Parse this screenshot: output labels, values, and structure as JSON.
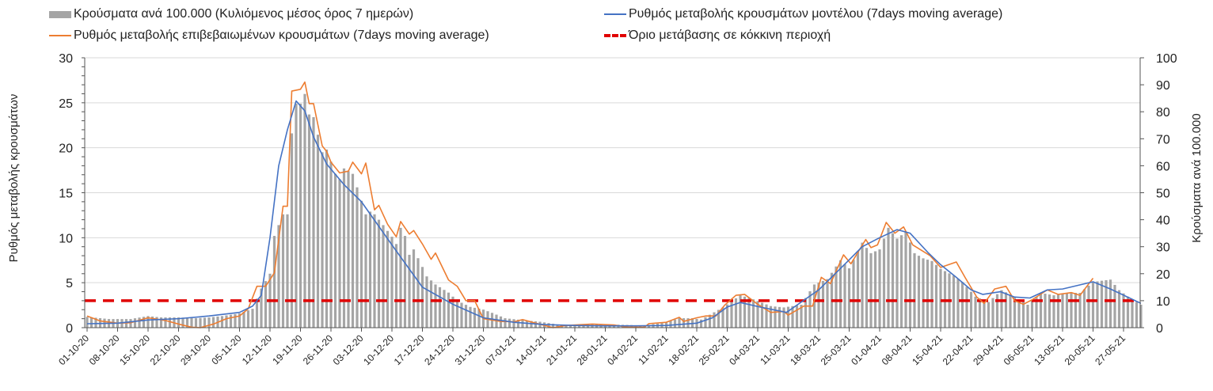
{
  "chart_data": {
    "type": "bar+line",
    "x_unit": "days since 01-10-20",
    "x_range": [
      0,
      242
    ],
    "x_tick_labels": [
      "01-10-20",
      "08-10-20",
      "15-10-20",
      "22-10-20",
      "29-10-20",
      "05-11-20",
      "12-11-20",
      "19-11-20",
      "26-11-20",
      "03-12-20",
      "10-12-20",
      "17-12-20",
      "24-12-20",
      "31-12-20",
      "07-01-21",
      "14-01-21",
      "21-01-21",
      "28-01-21",
      "04-02-21",
      "11-02-21",
      "18-02-21",
      "25-02-21",
      "04-03-21",
      "11-03-21",
      "18-03-21",
      "25-03-21",
      "01-04-21",
      "08-04-21",
      "15-04-21",
      "22-04-21",
      "29-04-21",
      "06-05-21",
      "13-05-21",
      "20-05-21",
      "27-05-21"
    ],
    "y_left": {
      "label": "Ρυθμός μεταβολής κρουσμάτων",
      "range": [
        0,
        30
      ],
      "ticks": [
        "0",
        "5",
        "10",
        "15",
        "20",
        "25",
        "30"
      ]
    },
    "y_right": {
      "label": "Κρούσματα ανά 100.000",
      "range": [
        0,
        100
      ],
      "ticks": [
        "0",
        "10",
        "20",
        "30",
        "40",
        "50",
        "60",
        "70",
        "80",
        "90",
        "100"
      ]
    },
    "grid": true,
    "legend_position": "top",
    "legend": {
      "bars": "Κρούσματα ανά 100.000 (Κυλιόμενος μέσος όρος 7 ημερών)",
      "model": "Ρυθμός μεταβολής κρουσμάτων μοντέλου (7days moving average)",
      "confirmed": "Ρυθμός μεταβολής επιβεβαιωμένων κρουσμάτων (7days moving average)",
      "threshold": "Όριο μετάβασης σε κόκκινη περιοχή"
    },
    "colors": {
      "bars": "#a5a5a5",
      "model": "#4472c4",
      "confirmed": "#ed7d31",
      "threshold": "#e00000"
    },
    "threshold_left_axis": 3,
    "bars_right_axis": [
      [
        0,
        4
      ],
      [
        5,
        3.2
      ],
      [
        10,
        3.2
      ],
      [
        14,
        4.3
      ],
      [
        17,
        3.8
      ],
      [
        21,
        3.8
      ],
      [
        25,
        3.5
      ],
      [
        28,
        3.8
      ],
      [
        31,
        4.3
      ],
      [
        35,
        5.3
      ],
      [
        38,
        7
      ],
      [
        40,
        14.5
      ],
      [
        42,
        20
      ],
      [
        43,
        34
      ],
      [
        45,
        42
      ],
      [
        46,
        42
      ],
      [
        47,
        72
      ],
      [
        48,
        83
      ],
      [
        49,
        83
      ],
      [
        50,
        86.6
      ],
      [
        51,
        79
      ],
      [
        52,
        78
      ],
      [
        54,
        65
      ],
      [
        55,
        66
      ],
      [
        57,
        57
      ],
      [
        58,
        55
      ],
      [
        59,
        59
      ],
      [
        61,
        57
      ],
      [
        64,
        42
      ],
      [
        65,
        43
      ],
      [
        66,
        42
      ],
      [
        68,
        38
      ],
      [
        70,
        33.7
      ],
      [
        71,
        31
      ],
      [
        72,
        37
      ],
      [
        73,
        34
      ],
      [
        74,
        27
      ],
      [
        75,
        29
      ],
      [
        77,
        22.5
      ],
      [
        78,
        19
      ],
      [
        80,
        16
      ],
      [
        83,
        13
      ],
      [
        85,
        10
      ],
      [
        88,
        7.7
      ],
      [
        91,
        6.7
      ],
      [
        93,
        5.5
      ],
      [
        96,
        3.5
      ],
      [
        100,
        2.8
      ],
      [
        104,
        2.2
      ],
      [
        108,
        1.2
      ],
      [
        112,
        1
      ],
      [
        118,
        1.3
      ],
      [
        124,
        1
      ],
      [
        128,
        0.8
      ],
      [
        130,
        1.3
      ],
      [
        133,
        2
      ],
      [
        136,
        3.5
      ],
      [
        139,
        3.5
      ],
      [
        141,
        3
      ],
      [
        146,
        7.5
      ],
      [
        150,
        12
      ],
      [
        153,
        10.5
      ],
      [
        157,
        8
      ],
      [
        160,
        7.5
      ],
      [
        164,
        8.5
      ],
      [
        167,
        16
      ],
      [
        170,
        18
      ],
      [
        173,
        25
      ],
      [
        175,
        22
      ],
      [
        178,
        31.5
      ],
      [
        180,
        27.6
      ],
      [
        182,
        29
      ],
      [
        184,
        37
      ],
      [
        186,
        33
      ],
      [
        188,
        35.5
      ],
      [
        190,
        27.6
      ],
      [
        192,
        25.7
      ],
      [
        194,
        24.7
      ],
      [
        196,
        21.8
      ],
      [
        199,
        19.3
      ],
      [
        201,
        16.9
      ],
      [
        204,
        11.5
      ],
      [
        207,
        9.5
      ],
      [
        210,
        13.9
      ],
      [
        213,
        11.5
      ],
      [
        216,
        8.5
      ],
      [
        219,
        12.9
      ],
      [
        222,
        12
      ],
      [
        225,
        12.9
      ],
      [
        228,
        12.9
      ],
      [
        231,
        16.9
      ],
      [
        233,
        17.4
      ],
      [
        235,
        17.8
      ],
      [
        237,
        13.9
      ],
      [
        239,
        11.5
      ],
      [
        242,
        8.5
      ]
    ],
    "model_left_axis": [
      [
        0,
        0.44
      ],
      [
        7,
        0.5
      ],
      [
        14,
        0.85
      ],
      [
        21,
        1.0
      ],
      [
        28,
        1.3
      ],
      [
        35,
        1.7
      ],
      [
        38,
        2.4
      ],
      [
        40,
        3.6
      ],
      [
        42,
        10
      ],
      [
        44,
        18
      ],
      [
        46,
        22
      ],
      [
        48,
        25.2
      ],
      [
        50,
        24.1
      ],
      [
        52,
        21.2
      ],
      [
        55,
        18.2
      ],
      [
        59,
        15.9
      ],
      [
        63,
        14.0
      ],
      [
        70,
        9.2
      ],
      [
        77,
        4.5
      ],
      [
        84,
        2.6
      ],
      [
        91,
        1.1
      ],
      [
        98,
        0.6
      ],
      [
        105,
        0.35
      ],
      [
        112,
        0.25
      ],
      [
        119,
        0.2
      ],
      [
        126,
        0.2
      ],
      [
        133,
        0.25
      ],
      [
        140,
        0.5
      ],
      [
        143.6,
        1.1
      ],
      [
        147,
        2.3
      ],
      [
        150,
        2.8
      ],
      [
        154.5,
        2.3
      ],
      [
        160.6,
        1.7
      ],
      [
        168,
        4.2
      ],
      [
        174.7,
        7.4
      ],
      [
        178,
        9.0
      ],
      [
        182,
        10.0
      ],
      [
        186,
        10.9
      ],
      [
        189,
        10.5
      ],
      [
        193,
        8.4
      ],
      [
        196,
        7.0
      ],
      [
        199.6,
        5.6
      ],
      [
        203,
        4.2
      ],
      [
        205.7,
        3.7
      ],
      [
        209.7,
        4.0
      ],
      [
        213,
        3.4
      ],
      [
        216.5,
        3.3
      ],
      [
        220.5,
        4.2
      ],
      [
        224,
        4.3
      ],
      [
        231,
        5.1
      ],
      [
        235,
        4.3
      ],
      [
        242,
        2.7
      ]
    ],
    "confirmed_left_axis": [
      [
        0,
        1.3
      ],
      [
        3,
        0.75
      ],
      [
        7,
        0.5
      ],
      [
        10,
        0.55
      ],
      [
        14,
        1.1
      ],
      [
        18,
        0.8
      ],
      [
        21,
        0.4
      ],
      [
        24,
        0.05
      ],
      [
        26,
        0
      ],
      [
        29,
        0.4
      ],
      [
        32,
        1.0
      ],
      [
        35,
        1.3
      ],
      [
        37,
        2.1
      ],
      [
        39,
        4.6
      ],
      [
        41,
        4.6
      ],
      [
        43,
        6.1
      ],
      [
        45,
        13.5
      ],
      [
        46,
        13.5
      ],
      [
        47,
        26.3
      ],
      [
        49,
        26.5
      ],
      [
        50,
        27.3
      ],
      [
        51,
        24.9
      ],
      [
        52,
        24.9
      ],
      [
        54,
        20.2
      ],
      [
        55,
        19.6
      ],
      [
        56,
        18.4
      ],
      [
        58,
        17.2
      ],
      [
        60,
        17.4
      ],
      [
        61,
        18.4
      ],
      [
        63,
        17.1
      ],
      [
        64,
        18.3
      ],
      [
        66,
        13.1
      ],
      [
        67,
        13.6
      ],
      [
        69,
        11.5
      ],
      [
        71,
        10.1
      ],
      [
        72,
        11.8
      ],
      [
        74,
        10.4
      ],
      [
        75,
        10.8
      ],
      [
        77,
        9.3
      ],
      [
        79,
        7.6
      ],
      [
        80,
        8.3
      ],
      [
        83,
        5.3
      ],
      [
        85,
        4.6
      ],
      [
        86,
        3.8
      ],
      [
        87,
        3.0
      ],
      [
        89,
        3.0
      ],
      [
        91,
        1.0
      ],
      [
        95,
        0.7
      ],
      [
        98,
        0.65
      ],
      [
        100,
        0.9
      ],
      [
        103,
        0.5
      ],
      [
        105,
        0.25
      ],
      [
        107,
        0
      ],
      [
        110,
        0.25
      ],
      [
        116,
        0.4
      ],
      [
        121,
        0.3
      ],
      [
        124,
        0.05
      ],
      [
        128,
        0.05
      ],
      [
        129,
        0.45
      ],
      [
        133,
        0.6
      ],
      [
        136,
        1.15
      ],
      [
        137,
        0.7
      ],
      [
        140,
        1.1
      ],
      [
        142,
        1.3
      ],
      [
        144.4,
        1.3
      ],
      [
        146.4,
        2.5
      ],
      [
        149,
        3.6
      ],
      [
        151,
        3.7
      ],
      [
        154,
        2.6
      ],
      [
        157,
        1.7
      ],
      [
        160,
        1.8
      ],
      [
        161,
        1.4
      ],
      [
        164.6,
        2.4
      ],
      [
        166.6,
        2.4
      ],
      [
        168.6,
        5.6
      ],
      [
        170.7,
        4.9
      ],
      [
        173.7,
        8.1
      ],
      [
        175.4,
        7.1
      ],
      [
        178.8,
        9.8
      ],
      [
        180,
        8.9
      ],
      [
        181.5,
        9.2
      ],
      [
        183.5,
        11.7
      ],
      [
        185.5,
        10.5
      ],
      [
        187.5,
        11.2
      ],
      [
        189.6,
        9.2
      ],
      [
        193.6,
        8.0
      ],
      [
        196,
        6.7
      ],
      [
        199.6,
        7.3
      ],
      [
        201.6,
        5.6
      ],
      [
        204.3,
        3.4
      ],
      [
        206,
        2.7
      ],
      [
        208.4,
        4.3
      ],
      [
        211,
        4.6
      ],
      [
        213,
        3.0
      ],
      [
        215,
        2.6
      ],
      [
        217,
        3.1
      ],
      [
        220.5,
        4.2
      ],
      [
        223,
        3.7
      ],
      [
        226,
        3.9
      ],
      [
        228,
        3.6
      ],
      [
        231,
        5.5
      ]
    ]
  }
}
